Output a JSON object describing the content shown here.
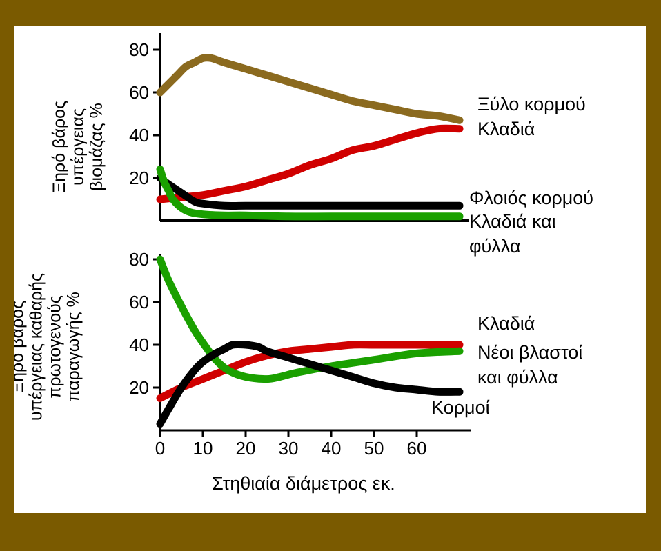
{
  "chart_data": [
    {
      "type": "line",
      "panel": "top",
      "ylabel": [
        "Ξηρό βάρος",
        "υπέργειας",
        "βιομάζας %"
      ],
      "xlabel": "",
      "yticks": [
        20,
        40,
        60,
        80
      ],
      "ylim": [
        0,
        90
      ],
      "xlim": [
        0,
        72
      ],
      "series": [
        {
          "name": "Ξύλο κορμού",
          "color": "#8b6a1f",
          "x": [
            0,
            2,
            4,
            6,
            8,
            10,
            12,
            15,
            20,
            25,
            30,
            35,
            40,
            45,
            50,
            55,
            60,
            65,
            70
          ],
          "y": [
            60,
            64,
            68,
            72,
            74,
            76,
            76,
            74,
            71,
            68,
            65,
            62,
            59,
            56,
            54,
            52,
            50,
            49,
            47
          ]
        },
        {
          "name": "Κλαδιά",
          "color": "#d00000",
          "x": [
            0,
            5,
            10,
            15,
            20,
            25,
            30,
            35,
            40,
            45,
            50,
            55,
            60,
            65,
            70
          ],
          "y": [
            10,
            11,
            12,
            14,
            16,
            19,
            22,
            26,
            29,
            33,
            35,
            38,
            41,
            43,
            43
          ]
        },
        {
          "name": "Φλοιός κορμού",
          "color": "#000000",
          "x": [
            0,
            2,
            5,
            8,
            10,
            15,
            20,
            30,
            40,
            50,
            60,
            70
          ],
          "y": [
            20,
            17,
            13,
            9,
            8,
            7,
            7,
            7,
            7,
            7,
            7,
            7
          ]
        },
        {
          "name": "Κλαδιά και φύλλα",
          "color": "#1aa000",
          "x": [
            0,
            1,
            2,
            3,
            5,
            7,
            10,
            15,
            20,
            30,
            40,
            50,
            60,
            70
          ],
          "y": [
            24,
            18,
            14,
            10,
            6,
            4,
            3,
            2.5,
            2.5,
            2,
            2,
            2,
            2,
            2
          ]
        }
      ]
    },
    {
      "type": "line",
      "panel": "bottom",
      "ylabel": [
        "Ξηρό βάρος",
        "υπέργειας καθαρής",
        "πρωτογενούς",
        "παραγωγής %"
      ],
      "xlabel": "Στηθιαία διάμετρος εκ.",
      "xticks": [
        0,
        10,
        20,
        30,
        40,
        50,
        60
      ],
      "yticks": [
        20,
        40,
        60,
        80
      ],
      "ylim": [
        0,
        90
      ],
      "xlim": [
        0,
        72
      ],
      "series": [
        {
          "name": "Κλαδιά",
          "color": "#d00000",
          "x": [
            0,
            5,
            10,
            15,
            20,
            25,
            30,
            35,
            40,
            45,
            50,
            55,
            60,
            65,
            70
          ],
          "y": [
            15,
            20,
            24,
            28,
            32,
            35,
            37,
            38,
            39,
            40,
            40,
            40,
            40,
            40,
            40
          ]
        },
        {
          "name": "Νέοι βλαστοί και φύλλα",
          "color": "#1aa000",
          "x": [
            0,
            2,
            5,
            8,
            10,
            13,
            16,
            20,
            25,
            28,
            32,
            40,
            50,
            60,
            70
          ],
          "y": [
            80,
            70,
            58,
            47,
            41,
            33,
            28,
            25,
            24,
            25,
            27,
            30,
            33,
            36,
            37
          ]
        },
        {
          "name": "Κορμοί",
          "color": "#000000",
          "x": [
            0,
            2,
            5,
            8,
            10,
            13,
            15,
            17,
            20,
            23,
            25,
            30,
            35,
            40,
            45,
            50,
            55,
            60,
            65,
            70
          ],
          "y": [
            3,
            10,
            20,
            28,
            32,
            36,
            38,
            40,
            40,
            39,
            37,
            34,
            31,
            28,
            25,
            22,
            20,
            19,
            18,
            18
          ]
        }
      ]
    }
  ]
}
